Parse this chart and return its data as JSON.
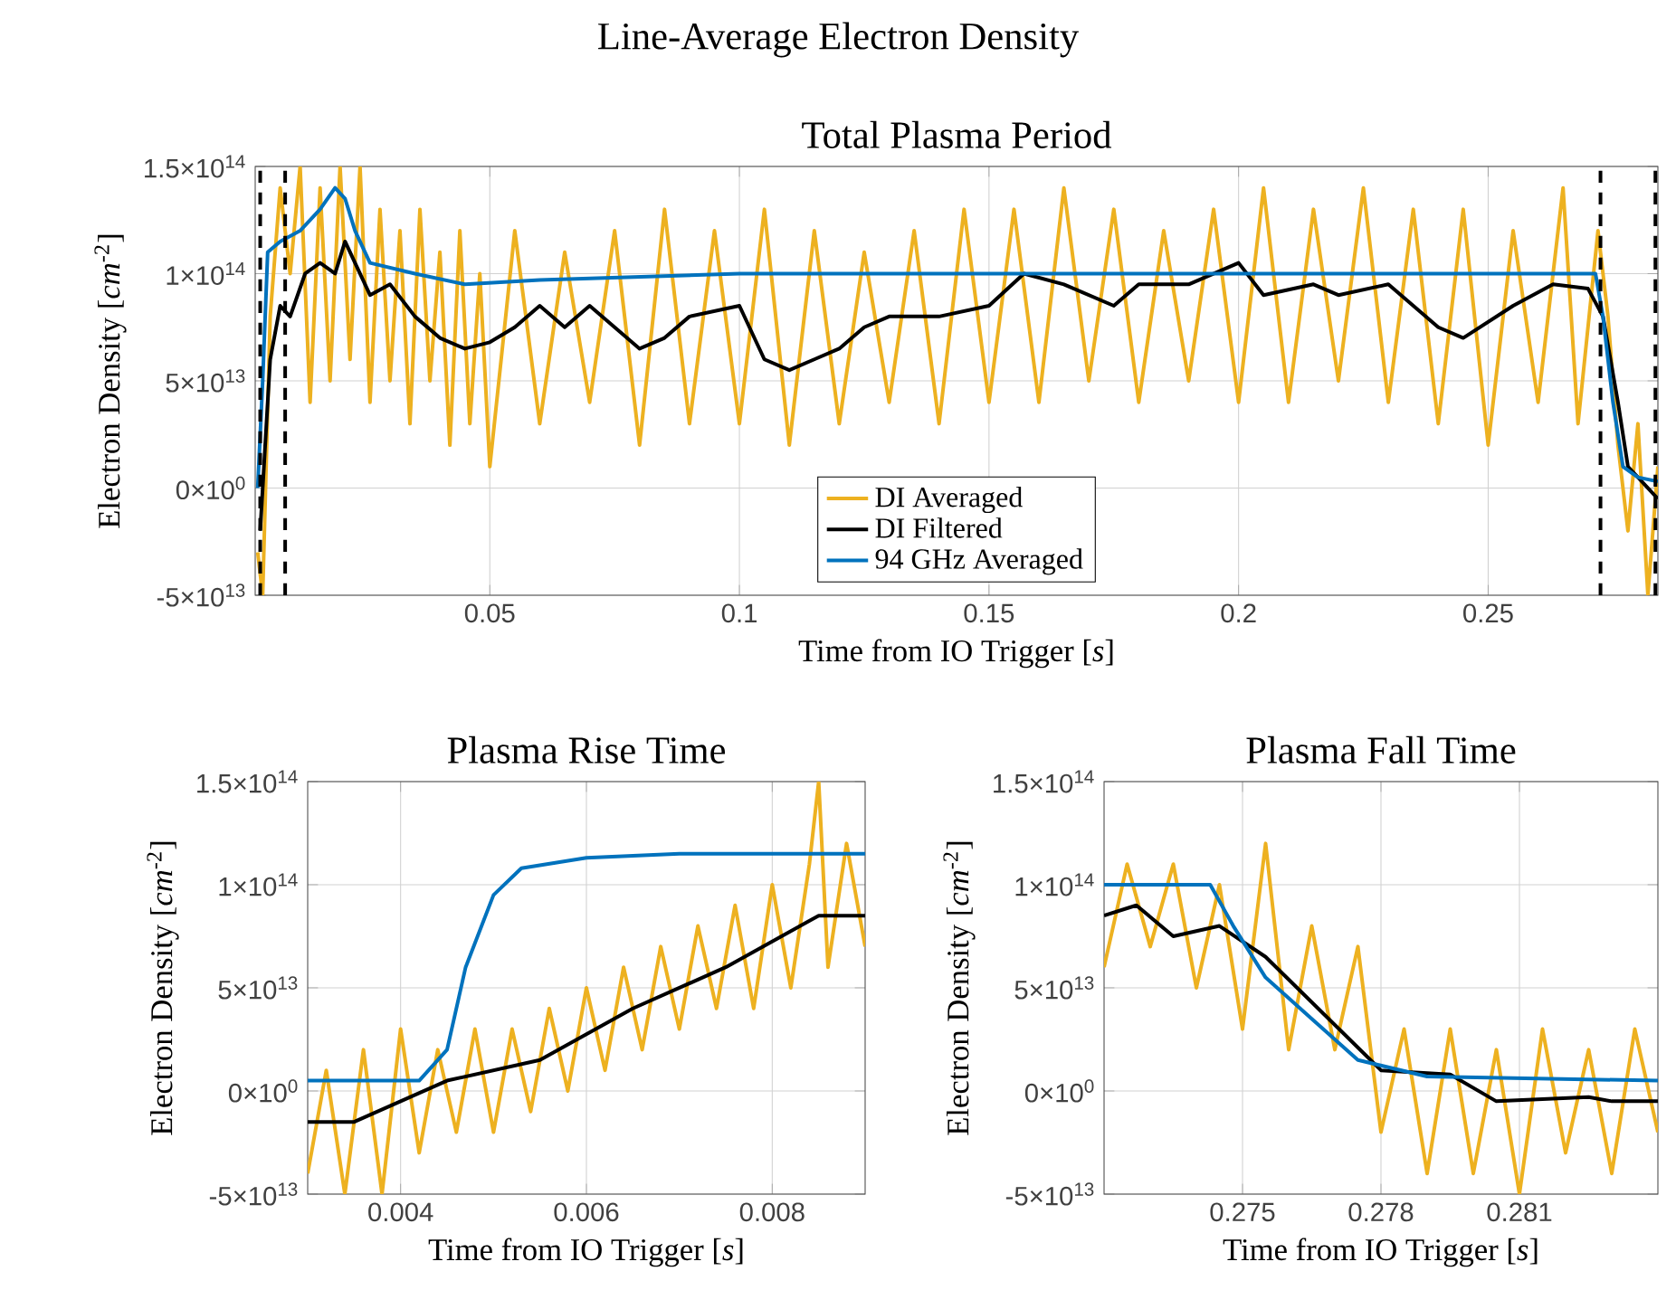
{
  "chart_data": [
    {
      "type": "line",
      "title": "Line-Average Electron Density",
      "subtitle": "Total Plasma Period",
      "xlabel": "Time from IO Trigger [*s*]",
      "ylabel": "Electron Density [*cm*$^{-2}$]",
      "xlim": [
        0.003,
        0.284
      ],
      "xticks": [
        0.05,
        0.1,
        0.15,
        0.2,
        0.25
      ],
      "ylim": [
        -50000000000000.0,
        150000000000000.0
      ],
      "yticks": [
        {
          "value": -50000000000000.0,
          "label": "-5×10$^{13}$"
        },
        {
          "value": 0,
          "label": "0×10$^{0}$"
        },
        {
          "value": 50000000000000.0,
          "label": "5×10$^{13}$"
        },
        {
          "value": 100000000000000.0,
          "label": "1×10$^{14}$"
        },
        {
          "value": 150000000000000.0,
          "label": "1.5×10$^{14}$"
        }
      ],
      "grid": true,
      "legend": "bottom",
      "ref_lines": [
        {
          "axis": "x",
          "value": 0.004,
          "color": "#000000",
          "line_style": "dashed"
        },
        {
          "axis": "x",
          "value": 0.009,
          "color": "#000000",
          "line_style": "dashed"
        },
        {
          "axis": "x",
          "value": 0.2725,
          "color": "#000000",
          "line_style": "dashed"
        },
        {
          "axis": "x",
          "value": 0.2835,
          "color": "#000000",
          "line_style": "dashed"
        }
      ],
      "series": [
        {
          "name": "DI Averaged",
          "color": "#edb120",
          "x": [
            0.0035,
            0.0045,
            0.006,
            0.008,
            0.01,
            0.012,
            0.014,
            0.016,
            0.018,
            0.02,
            0.022,
            0.024,
            0.026,
            0.028,
            0.03,
            0.032,
            0.034,
            0.036,
            0.038,
            0.04,
            0.042,
            0.044,
            0.046,
            0.048,
            0.05,
            0.055,
            0.06,
            0.065,
            0.07,
            0.075,
            0.08,
            0.085,
            0.09,
            0.095,
            0.1,
            0.105,
            0.11,
            0.115,
            0.12,
            0.125,
            0.13,
            0.135,
            0.14,
            0.145,
            0.15,
            0.155,
            0.16,
            0.165,
            0.17,
            0.175,
            0.18,
            0.185,
            0.19,
            0.195,
            0.2,
            0.205,
            0.21,
            0.215,
            0.22,
            0.225,
            0.23,
            0.235,
            0.24,
            0.245,
            0.25,
            0.255,
            0.26,
            0.265,
            0.268,
            0.272,
            0.274,
            0.276,
            0.278,
            0.28,
            0.282,
            0.284
          ],
          "values": [
            -30000000000000.0,
            -50000000000000.0,
            80000000000000.0,
            140000000000000.0,
            100000000000000.0,
            150000000000000.0,
            40000000000000.0,
            140000000000000.0,
            50000000000000.0,
            150000000000000.0,
            60000000000000.0,
            150000000000000.0,
            40000000000000.0,
            130000000000000.0,
            50000000000000.0,
            120000000000000.0,
            30000000000000.0,
            130000000000000.0,
            50000000000000.0,
            110000000000000.0,
            20000000000000.0,
            120000000000000.0,
            30000000000000.0,
            100000000000000.0,
            10000000000000.0,
            120000000000000.0,
            30000000000000.0,
            110000000000000.0,
            40000000000000.0,
            120000000000000.0,
            20000000000000.0,
            130000000000000.0,
            30000000000000.0,
            120000000000000.0,
            30000000000000.0,
            130000000000000.0,
            20000000000000.0,
            120000000000000.0,
            30000000000000.0,
            110000000000000.0,
            40000000000000.0,
            120000000000000.0,
            30000000000000.0,
            130000000000000.0,
            40000000000000.0,
            130000000000000.0,
            40000000000000.0,
            140000000000000.0,
            50000000000000.0,
            130000000000000.0,
            40000000000000.0,
            120000000000000.0,
            50000000000000.0,
            130000000000000.0,
            40000000000000.0,
            140000000000000.0,
            40000000000000.0,
            130000000000000.0,
            50000000000000.0,
            140000000000000.0,
            40000000000000.0,
            130000000000000.0,
            30000000000000.0,
            130000000000000.0,
            20000000000000.0,
            120000000000000.0,
            40000000000000.0,
            140000000000000.0,
            30000000000000.0,
            120000000000000.0,
            80000000000000.0,
            20000000000000.0,
            -20000000000000.0,
            30000000000000.0,
            -50000000000000.0,
            10000000000000.0
          ]
        },
        {
          "name": "DI Filtered",
          "color": "#000000",
          "x": [
            0.004,
            0.006,
            0.008,
            0.01,
            0.013,
            0.016,
            0.019,
            0.021,
            0.023,
            0.026,
            0.03,
            0.035,
            0.04,
            0.045,
            0.05,
            0.055,
            0.06,
            0.065,
            0.07,
            0.075,
            0.08,
            0.085,
            0.09,
            0.1,
            0.105,
            0.11,
            0.115,
            0.12,
            0.125,
            0.13,
            0.14,
            0.15,
            0.157,
            0.165,
            0.175,
            0.18,
            0.19,
            0.2,
            0.205,
            0.215,
            0.22,
            0.23,
            0.24,
            0.245,
            0.255,
            0.263,
            0.27,
            0.273,
            0.276,
            0.278,
            0.28,
            0.284
          ],
          "values": [
            -20000000000000.0,
            60000000000000.0,
            85000000000000.0,
            80000000000000.0,
            100000000000000.0,
            105000000000000.0,
            100000000000000.0,
            115000000000000.0,
            105000000000000.0,
            90000000000000.0,
            95000000000000.0,
            80000000000000.0,
            70000000000000.0,
            65000000000000.0,
            68000000000000.0,
            75000000000000.0,
            85000000000000.0,
            75000000000000.0,
            85000000000000.0,
            75000000000000.0,
            65000000000000.0,
            70000000000000.0,
            80000000000000.0,
            85000000000000.0,
            60000000000000.0,
            55000000000000.0,
            60000000000000.0,
            65000000000000.0,
            75000000000000.0,
            80000000000000.0,
            80000000000000.0,
            85000000000000.0,
            100000000000000.0,
            95000000000000.0,
            85000000000000.0,
            95000000000000.0,
            95000000000000.0,
            105000000000000.0,
            90000000000000.0,
            95000000000000.0,
            90000000000000.0,
            95000000000000.0,
            75000000000000.0,
            70000000000000.0,
            85000000000000.0,
            95000000000000.0,
            93000000000000.0,
            80000000000000.0,
            40000000000000.0,
            10000000000000.0,
            5000000000000.0,
            -5000000000000.0
          ]
        },
        {
          "name": "94 GHz Averaged",
          "color": "#0072bd",
          "x": [
            0.0035,
            0.0045,
            0.0055,
            0.008,
            0.012,
            0.016,
            0.019,
            0.021,
            0.023,
            0.026,
            0.035,
            0.045,
            0.06,
            0.1,
            0.15,
            0.2,
            0.25,
            0.2715,
            0.273,
            0.275,
            0.277,
            0.28,
            0.284
          ],
          "values": [
            0,
            50000000000000.0,
            110000000000000.0,
            115000000000000.0,
            120000000000000.0,
            130000000000000.0,
            140000000000000.0,
            135000000000000.0,
            120000000000000.0,
            105000000000000.0,
            100000000000000.0,
            95000000000000.0,
            97000000000000.0,
            100000000000000.0,
            100000000000000.0,
            100000000000000.0,
            100000000000000.0,
            100000000000000.0,
            80000000000000.0,
            40000000000000.0,
            10000000000000.0,
            5000000000000.0,
            3000000000000.0
          ]
        }
      ]
    },
    {
      "type": "line",
      "title": "Plasma Rise Time",
      "xlabel": "Time from IO Trigger [*s*]",
      "ylabel": "Electron Density [*cm*$^{-2}$]",
      "xlim": [
        0.003,
        0.009
      ],
      "xticks": [
        0.004,
        0.006,
        0.008
      ],
      "ylim": [
        -50000000000000.0,
        150000000000000.0
      ],
      "yticks": [
        {
          "value": -50000000000000.0,
          "label": "-5×10$^{13}$"
        },
        {
          "value": 0,
          "label": "0×10$^{0}$"
        },
        {
          "value": 50000000000000.0,
          "label": "5×10$^{13}$"
        },
        {
          "value": 100000000000000.0,
          "label": "1×10$^{14}$"
        },
        {
          "value": 150000000000000.0,
          "label": "1.5×10$^{14}$"
        }
      ],
      "grid": true,
      "series": [
        {
          "color": "#edb120",
          "x": [
            0.003,
            0.0032,
            0.0034,
            0.0036,
            0.0038,
            0.004,
            0.0042,
            0.0044,
            0.0046,
            0.0048,
            0.005,
            0.0052,
            0.0054,
            0.0056,
            0.0058,
            0.006,
            0.0062,
            0.0064,
            0.0066,
            0.0068,
            0.007,
            0.0072,
            0.0074,
            0.0076,
            0.0078,
            0.008,
            0.0082,
            0.0084,
            0.0085,
            0.0086,
            0.0088,
            0.009
          ],
          "values": [
            -40000000000000.0,
            10000000000000.0,
            -50000000000000.0,
            20000000000000.0,
            -50000000000000.0,
            30000000000000.0,
            -30000000000000.0,
            20000000000000.0,
            -20000000000000.0,
            30000000000000.0,
            -20000000000000.0,
            30000000000000.0,
            -10000000000000.0,
            40000000000000.0,
            0,
            50000000000000.0,
            10000000000000.0,
            60000000000000.0,
            20000000000000.0,
            70000000000000.0,
            30000000000000.0,
            80000000000000.0,
            40000000000000.0,
            90000000000000.0,
            40000000000000.0,
            100000000000000.0,
            50000000000000.0,
            110000000000000.0,
            150000000000000.0,
            60000000000000.0,
            120000000000000.0,
            70000000000000.0
          ]
        },
        {
          "color": "#000000",
          "x": [
            0.003,
            0.0035,
            0.0045,
            0.0055,
            0.0065,
            0.0075,
            0.0085,
            0.009
          ],
          "values": [
            -15000000000000.0,
            -15000000000000.0,
            5000000000000.0,
            15000000000000.0,
            40000000000000.0,
            60000000000000.0,
            85000000000000.0,
            85000000000000.0
          ]
        },
        {
          "color": "#0072bd",
          "x": [
            0.003,
            0.0042,
            0.0045,
            0.0047,
            0.005,
            0.0053,
            0.006,
            0.007,
            0.009
          ],
          "values": [
            5000000000000.0,
            5000000000000.0,
            20000000000000.0,
            60000000000000.0,
            95000000000000.0,
            108000000000000.0,
            113000000000000.0,
            115000000000000.0,
            115000000000000.0
          ]
        }
      ]
    },
    {
      "type": "line",
      "title": "Plasma Fall Time",
      "xlabel": "Time from IO Trigger [*s*]",
      "ylabel": "Electron Density [*cm*$^{-2}$]",
      "xlim": [
        0.272,
        0.284
      ],
      "xticks": [
        0.275,
        0.278,
        0.281
      ],
      "ylim": [
        -50000000000000.0,
        150000000000000.0
      ],
      "yticks": [
        {
          "value": -50000000000000.0,
          "label": "-5×10$^{13}$"
        },
        {
          "value": 0,
          "label": "0×10$^{0}$"
        },
        {
          "value": 50000000000000.0,
          "label": "5×10$^{13}$"
        },
        {
          "value": 100000000000000.0,
          "label": "1×10$^{14}$"
        },
        {
          "value": 150000000000000.0,
          "label": "1.5×10$^{14}$"
        }
      ],
      "grid": true,
      "series": [
        {
          "color": "#edb120",
          "x": [
            0.272,
            0.2725,
            0.273,
            0.2735,
            0.274,
            0.2745,
            0.275,
            0.2755,
            0.276,
            0.2765,
            0.277,
            0.2775,
            0.278,
            0.2785,
            0.279,
            0.2795,
            0.28,
            0.2805,
            0.281,
            0.2815,
            0.282,
            0.2825,
            0.283,
            0.2835,
            0.284
          ],
          "values": [
            60000000000000.0,
            110000000000000.0,
            70000000000000.0,
            110000000000000.0,
            50000000000000.0,
            100000000000000.0,
            30000000000000.0,
            120000000000000.0,
            20000000000000.0,
            80000000000000.0,
            20000000000000.0,
            70000000000000.0,
            -20000000000000.0,
            30000000000000.0,
            -40000000000000.0,
            30000000000000.0,
            -40000000000000.0,
            20000000000000.0,
            -50000000000000.0,
            30000000000000.0,
            -30000000000000.0,
            20000000000000.0,
            -40000000000000.0,
            30000000000000.0,
            -20000000000000.0
          ]
        },
        {
          "color": "#000000",
          "x": [
            0.272,
            0.2727,
            0.2735,
            0.2745,
            0.2755,
            0.278,
            0.2795,
            0.2805,
            0.2825,
            0.283,
            0.284
          ],
          "values": [
            85000000000000.0,
            90000000000000.0,
            75000000000000.0,
            80000000000000.0,
            65000000000000.0,
            10000000000000.0,
            8000000000000.0,
            -5000000000000.0,
            -3000000000000.0,
            -5000000000000.0,
            -5000000000000.0
          ]
        },
        {
          "color": "#0072bd",
          "x": [
            0.272,
            0.2743,
            0.2748,
            0.2755,
            0.2765,
            0.2775,
            0.279,
            0.284
          ],
          "values": [
            100000000000000.0,
            100000000000000.0,
            80000000000000.0,
            55000000000000.0,
            35000000000000.0,
            15000000000000.0,
            7000000000000.0,
            5000000000000.0
          ]
        }
      ]
    }
  ]
}
